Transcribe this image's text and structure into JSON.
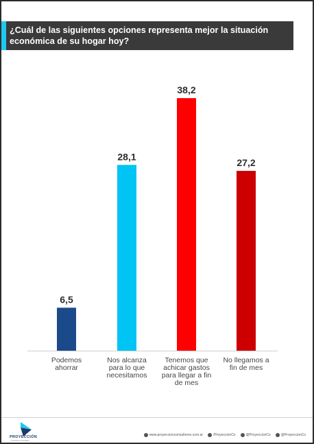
{
  "title": "¿Cuál de las siguientes opciones representa mejor la situación económica de su hogar hoy?",
  "colors": {
    "title_band": "#3a3a3a",
    "title_accent": "#1ec8f0"
  },
  "chart_data": {
    "type": "bar",
    "categories": [
      [
        "Podemos",
        "ahorrar"
      ],
      [
        "Nos alcanza",
        "para lo que",
        "necesitamos"
      ],
      [
        "Tenemos que",
        "achicar gastos",
        "para llegar a fin",
        "de mes"
      ],
      [
        "No llegamos a",
        "fin de mes"
      ]
    ],
    "values": [
      6.5,
      28.1,
      38.2,
      27.2
    ],
    "value_labels": [
      "6,5",
      "28,1",
      "38,2",
      "27,2"
    ],
    "colors": [
      "#1b4a8a",
      "#00c4f4",
      "#ff0000",
      "#cc0000"
    ],
    "grid": false,
    "legend": "none"
  },
  "footer": {
    "brand": "PROYECCIÓN",
    "brand_sub": "CONSULTORES",
    "links": [
      {
        "icon": "globe-icon",
        "text": "www.proyeccionconsultores.com.ar"
      },
      {
        "icon": "facebook-icon",
        "text": "/ProyeccionCo"
      },
      {
        "icon": "twitter-icon",
        "text": "@ProyeccionCo"
      },
      {
        "icon": "instagram-icon",
        "text": "@ProyeccionCo"
      }
    ]
  }
}
